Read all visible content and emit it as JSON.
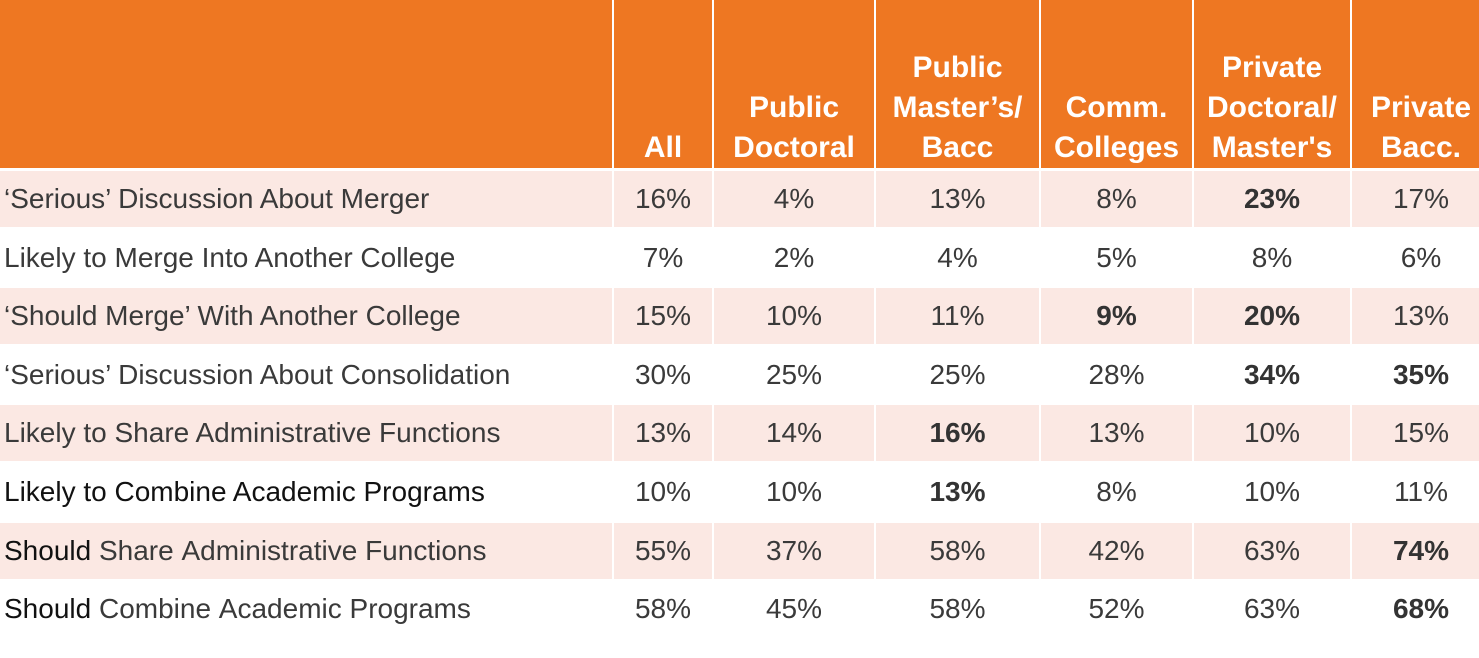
{
  "chart_data": {
    "type": "table",
    "columns": [
      "",
      "All",
      "Public\nDoctoral",
      "Public\nMaster’s/\nBacc",
      "Comm.\nColleges",
      "Private\nDoctoral/\nMaster's",
      "Private\nBacc."
    ],
    "rows": [
      {
        "label": "‘Serious’ Discussion About Merger",
        "values": [
          "16%",
          "4%",
          "13%",
          "8%",
          "23%",
          "17%"
        ],
        "bold": [
          false,
          false,
          false,
          false,
          true,
          false
        ]
      },
      {
        "label": "Likely to Merge Into Another College",
        "values": [
          "7%",
          "2%",
          "4%",
          "5%",
          "8%",
          "6%"
        ],
        "bold": [
          false,
          false,
          false,
          false,
          false,
          false
        ]
      },
      {
        "label": "‘Should Merge’ With Another College",
        "values": [
          "15%",
          "10%",
          "11%",
          "9%",
          "20%",
          "13%"
        ],
        "bold": [
          false,
          false,
          false,
          true,
          true,
          false
        ]
      },
      {
        "label": "‘Serious’ Discussion About Consolidation",
        "values": [
          "30%",
          "25%",
          "25%",
          "28%",
          "34%",
          "35%"
        ],
        "bold": [
          false,
          false,
          false,
          false,
          true,
          true
        ]
      },
      {
        "label": "Likely to Share Administrative Functions",
        "values": [
          "13%",
          "14%",
          "16%",
          "13%",
          "10%",
          "15%"
        ],
        "bold": [
          false,
          false,
          true,
          false,
          false,
          false
        ]
      },
      {
        "label": "Likely to Combine Academic Programs",
        "values": [
          "10%",
          "10%",
          "13%",
          "8%",
          "10%",
          "11%"
        ],
        "bold": [
          false,
          false,
          true,
          false,
          false,
          false
        ]
      },
      {
        "label_parts": [
          "Should",
          " Share Administrative Functions"
        ],
        "label": "Should Share Administrative Functions",
        "values": [
          "55%",
          "37%",
          "58%",
          "42%",
          "63%",
          "74%"
        ],
        "bold": [
          false,
          false,
          false,
          false,
          false,
          true
        ]
      },
      {
        "label_parts": [
          "Should",
          " Combine Academic Programs"
        ],
        "label": "Should Combine Academic Programs",
        "values": [
          "58%",
          "45%",
          "58%",
          "52%",
          "63%",
          "68%"
        ],
        "bold": [
          false,
          false,
          false,
          false,
          false,
          true
        ]
      }
    ]
  },
  "colors": {
    "header_bg": "#ee7722",
    "row_shade": "#fbe8e3",
    "header_text": "#ffffff"
  }
}
